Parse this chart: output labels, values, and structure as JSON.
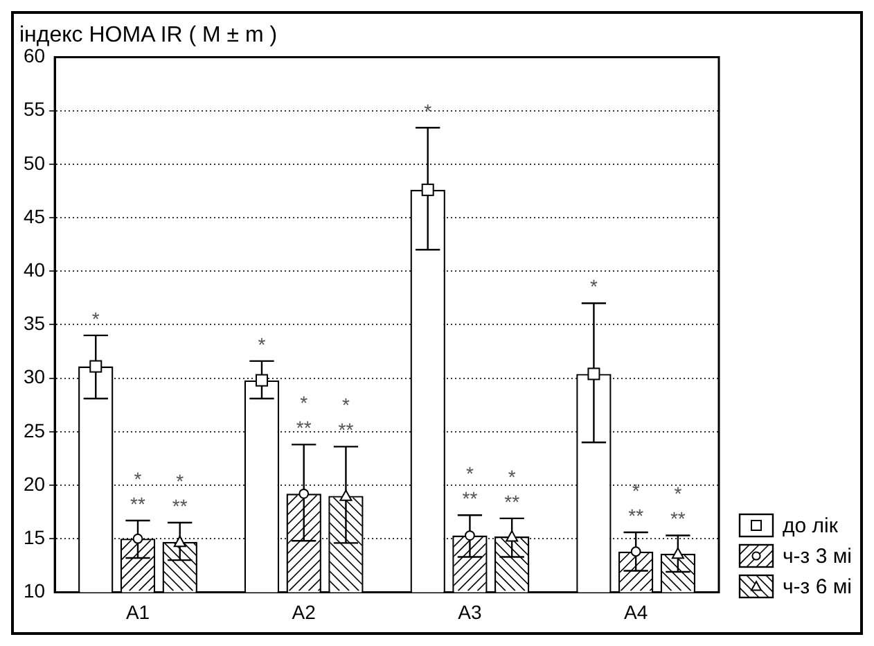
{
  "chart_data": {
    "type": "bar",
    "ylabel": "індекс HOMA IR ( M ± m )",
    "categories": [
      "A1",
      "A2",
      "A3",
      "A4"
    ],
    "series": [
      {
        "name": "до лік",
        "color": "#ffffff",
        "marker": "square",
        "values": [
          31.1,
          29.8,
          47.6,
          30.4
        ],
        "errors": [
          [
            28.1,
            34.0
          ],
          [
            28.1,
            31.6
          ],
          [
            42.0,
            53.4
          ],
          [
            24.0,
            37.0
          ]
        ]
      },
      {
        "name": "ч-з 3 мі",
        "color": "#ffffff",
        "marker": "circle",
        "values": [
          15.0,
          19.2,
          15.3,
          13.8
        ],
        "errors": [
          [
            13.2,
            16.7
          ],
          [
            14.8,
            23.8
          ],
          [
            13.3,
            17.2
          ],
          [
            12.0,
            15.6
          ]
        ]
      },
      {
        "name": "ч-з 6 мі",
        "color": "#ffffff",
        "marker": "triangle",
        "values": [
          14.7,
          19.0,
          15.2,
          13.6
        ],
        "errors": [
          [
            13.0,
            16.5
          ],
          [
            14.6,
            23.6
          ],
          [
            13.3,
            16.9
          ],
          [
            11.9,
            15.3
          ]
        ]
      }
    ],
    "ylim": [
      10,
      60
    ],
    "yticks": [
      10,
      15,
      20,
      25,
      30,
      35,
      40,
      45,
      50,
      55,
      60
    ],
    "grid": "y",
    "legend": "bottom right",
    "annotations": [
      "*",
      "*\n**",
      "*\n**",
      "*",
      "*\n**",
      "*\n**",
      "*",
      "*\n**",
      "*\n**",
      "*",
      "*\n**",
      "*\n**"
    ]
  }
}
